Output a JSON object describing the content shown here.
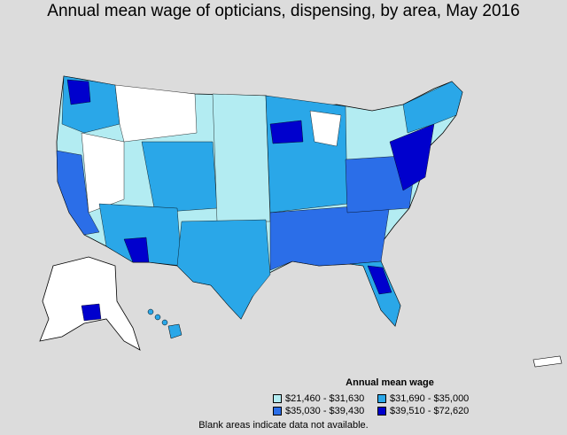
{
  "title": "Annual mean wage of opticians, dispensing, by area, May 2016",
  "colors": {
    "background": "#dcdcdc",
    "bin1": "#b3ecf2",
    "bin2": "#2aa7e8",
    "bin3": "#2b6ee8",
    "bin4": "#0000cd",
    "blank": "#ffffff",
    "border": "#000000"
  },
  "legend": {
    "title": "Annual mean wage",
    "items": [
      {
        "label": "$21,460 - $31,630",
        "color": "#b3ecf2"
      },
      {
        "label": "$31,690 - $35,000",
        "color": "#2aa7e8"
      },
      {
        "label": "$35,030 - $39,430",
        "color": "#2b6ee8"
      },
      {
        "label": "$39,510 - $72,620",
        "color": "#0000cd"
      }
    ]
  },
  "note": "Blank areas indicate data not available."
}
